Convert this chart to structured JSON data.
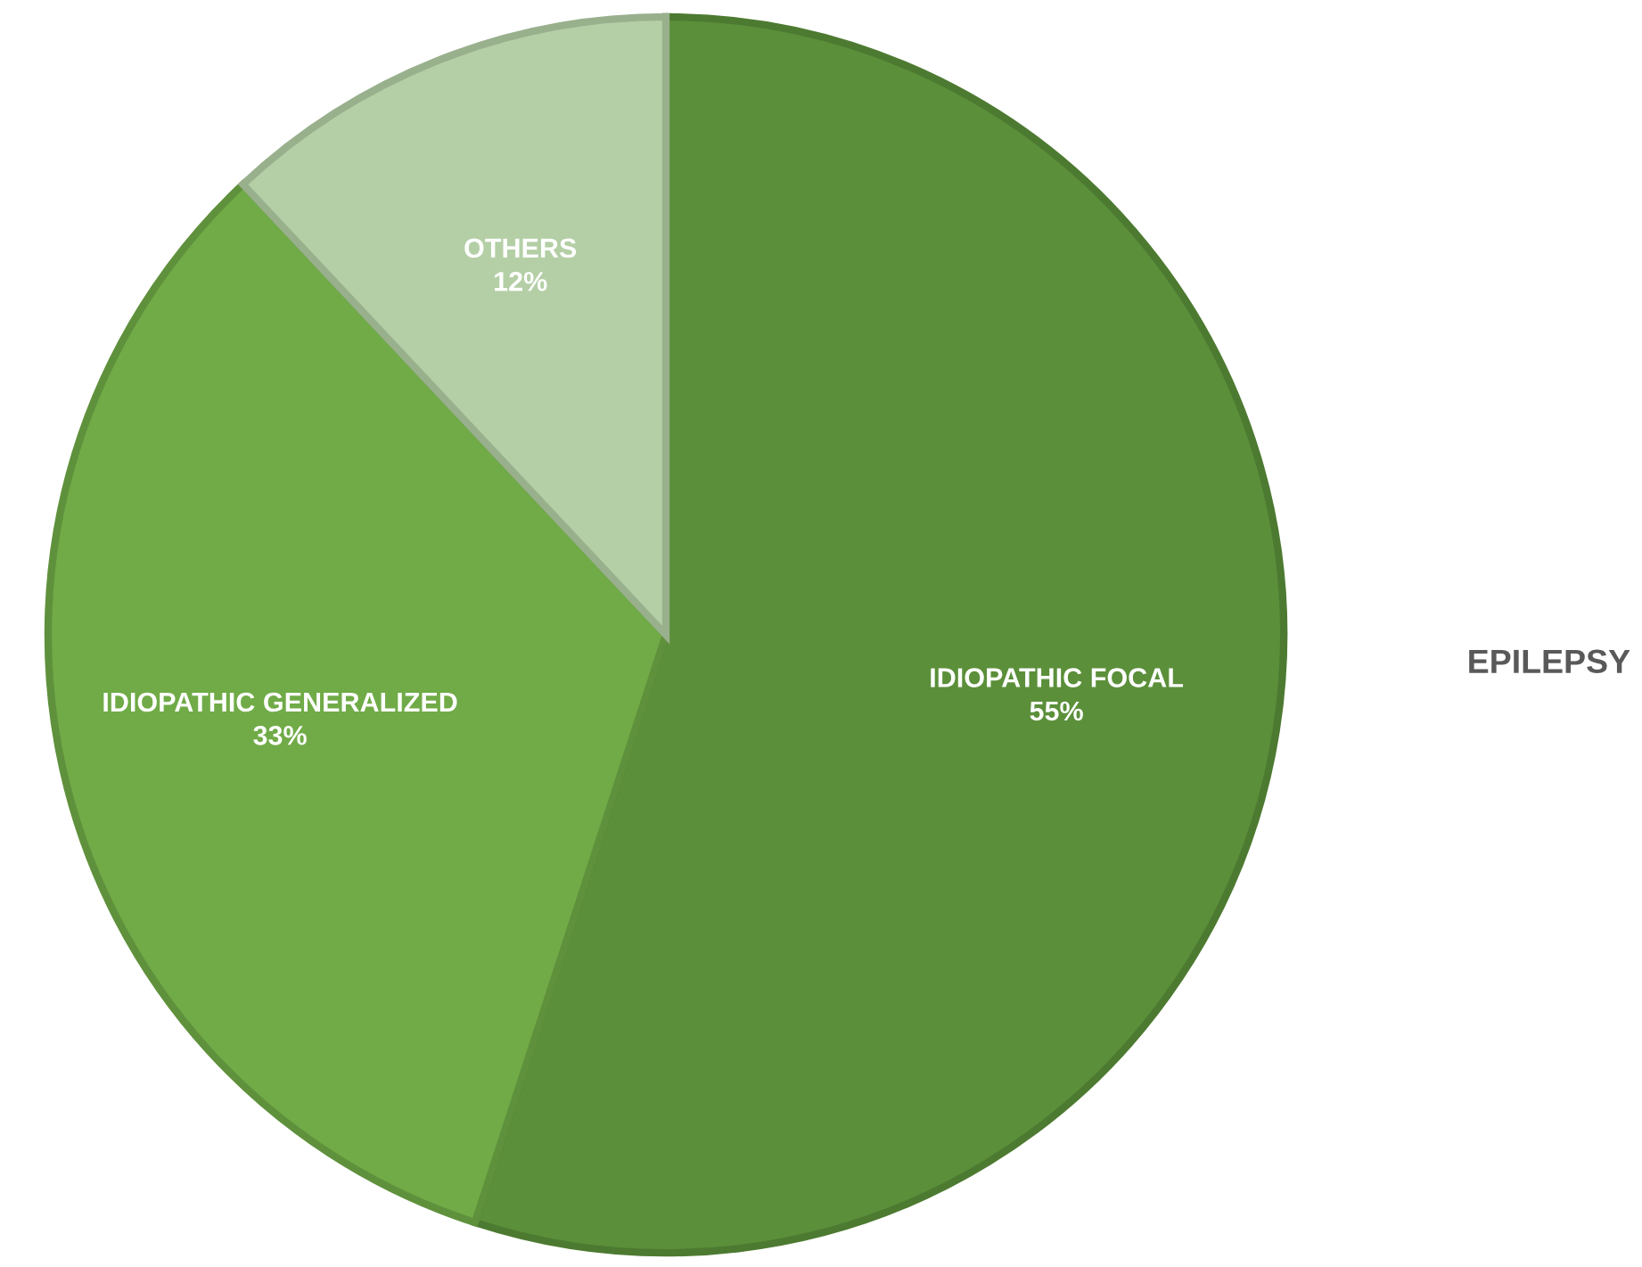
{
  "chart_data": {
    "type": "pie",
    "title": "EPILEPSY",
    "categories": [
      "IDIOPATHIC FOCAL",
      "IDIOPATHIC GENERALIZED",
      "OTHERS"
    ],
    "values": [
      55,
      33,
      12
    ],
    "value_labels": [
      "55%",
      "33%",
      "12%"
    ],
    "colors": [
      "#5b8f3a",
      "#70ab47",
      "#b4cfa6"
    ],
    "legend": false
  }
}
